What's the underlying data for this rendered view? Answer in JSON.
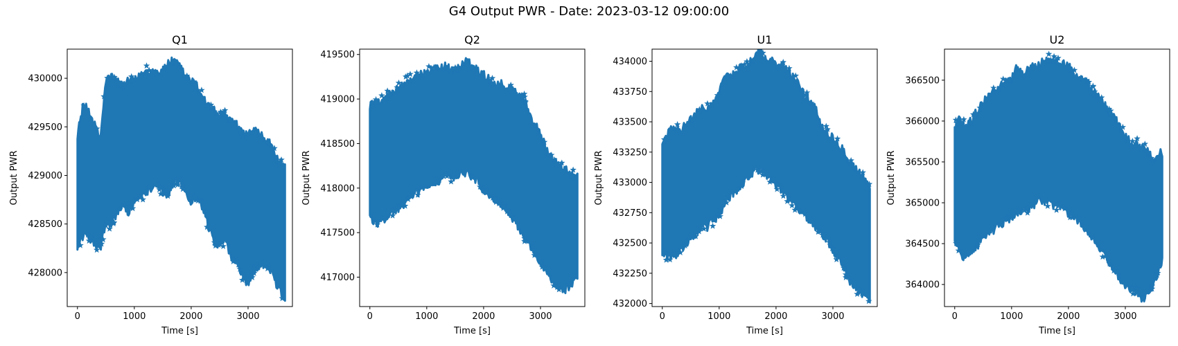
{
  "figure": {
    "title": "G4 Output PWR - Date: 2023-03-12 09:00:00"
  },
  "colors": {
    "marker": "#1f77b4",
    "axes": "#000000",
    "background": "#ffffff"
  },
  "chart_data": [
    {
      "type": "scatter",
      "title": "Q1",
      "xlabel": "Time [s]",
      "ylabel": "Output PWR",
      "marker": "star",
      "grid": false,
      "xlim": [
        -180,
        3780
      ],
      "ylim": [
        427650,
        430300
      ],
      "xticks": [
        0,
        1000,
        2000,
        3000
      ],
      "yticks": [
        428000,
        428500,
        429000,
        429500,
        430000
      ],
      "xticklabels": [
        "0",
        "1000",
        "2000",
        "3000"
      ],
      "yticklabels": [
        "428000",
        "428500",
        "429000",
        "429500",
        "430000"
      ],
      "upper_envelope": {
        "x": [
          0,
          100,
          200,
          300,
          400,
          500,
          600,
          700,
          800,
          900,
          1000,
          1100,
          1200,
          1300,
          1400,
          1500,
          1600,
          1700,
          1800,
          1900,
          2000,
          2100,
          2200,
          2300,
          2400,
          2500,
          2600,
          2700,
          2800,
          2900,
          3000,
          3100,
          3200,
          3300,
          3400,
          3500,
          3650
        ],
        "y": [
          429400,
          429700,
          429650,
          429500,
          429350,
          429950,
          430000,
          429950,
          429900,
          429950,
          429950,
          430000,
          430050,
          430050,
          430050,
          430050,
          430150,
          430150,
          430100,
          430000,
          429950,
          429900,
          429800,
          429700,
          429650,
          429600,
          429600,
          429550,
          429500,
          429400,
          429400,
          429450,
          429400,
          429350,
          429300,
          429150,
          429050
        ]
      },
      "lower_envelope": {
        "x": [
          0,
          100,
          200,
          300,
          400,
          500,
          600,
          700,
          800,
          900,
          1000,
          1100,
          1200,
          1300,
          1400,
          1500,
          1600,
          1700,
          1800,
          1900,
          2000,
          2100,
          2200,
          2300,
          2400,
          2500,
          2600,
          2700,
          2800,
          2900,
          3000,
          3100,
          3200,
          3300,
          3400,
          3500,
          3650
        ],
        "y": [
          428300,
          428400,
          428400,
          428300,
          428250,
          428550,
          428500,
          428650,
          428700,
          428650,
          428750,
          428800,
          428850,
          428900,
          428950,
          428850,
          428800,
          428950,
          429000,
          428850,
          428750,
          428800,
          428700,
          428500,
          428350,
          428300,
          428350,
          428200,
          428150,
          428000,
          427900,
          428050,
          428100,
          428100,
          428050,
          427900,
          427750
        ]
      }
    },
    {
      "type": "scatter",
      "title": "Q2",
      "xlabel": "Time [s]",
      "ylabel": "Output PWR",
      "marker": "star",
      "grid": false,
      "xlim": [
        -180,
        3780
      ],
      "ylim": [
        416670,
        419560
      ],
      "xticks": [
        0,
        1000,
        2000,
        3000
      ],
      "yticks": [
        417000,
        417500,
        418000,
        418500,
        419000,
        419500
      ],
      "xticklabels": [
        "0",
        "1000",
        "2000",
        "3000"
      ],
      "yticklabels": [
        "417000",
        "417500",
        "418000",
        "418500",
        "419000",
        "419500"
      ],
      "upper_envelope": {
        "x": [
          0,
          100,
          200,
          300,
          400,
          500,
          600,
          700,
          800,
          900,
          1000,
          1100,
          1200,
          1300,
          1400,
          1500,
          1600,
          1700,
          1800,
          1900,
          2000,
          2100,
          2200,
          2300,
          2400,
          2500,
          2600,
          2700,
          2800,
          2900,
          3000,
          3100,
          3200,
          3300,
          3400,
          3500,
          3650
        ],
        "y": [
          418900,
          418950,
          418980,
          419000,
          419050,
          419100,
          419150,
          419200,
          419200,
          419250,
          419300,
          419300,
          419320,
          419350,
          419320,
          419300,
          419350,
          419400,
          419350,
          419300,
          419250,
          419200,
          419150,
          419150,
          419100,
          419100,
          419050,
          419000,
          418800,
          418700,
          418600,
          418400,
          418300,
          418250,
          418200,
          418150,
          418100
        ]
      },
      "lower_envelope": {
        "x": [
          0,
          100,
          200,
          300,
          400,
          500,
          600,
          700,
          800,
          900,
          1000,
          1100,
          1200,
          1300,
          1400,
          1500,
          1600,
          1700,
          1800,
          1900,
          2000,
          2100,
          2200,
          2300,
          2400,
          2500,
          2600,
          2700,
          2800,
          2900,
          3000,
          3100,
          3200,
          3300,
          3400,
          3500,
          3650
        ],
        "y": [
          417700,
          417600,
          417650,
          417700,
          417750,
          417800,
          417850,
          417900,
          417950,
          418000,
          418050,
          418100,
          418100,
          418150,
          418150,
          418150,
          418200,
          418200,
          418150,
          418100,
          418000,
          417950,
          417900,
          417850,
          417800,
          417700,
          417600,
          417500,
          417400,
          417300,
          417200,
          417100,
          417000,
          416900,
          416880,
          416900,
          417050
        ]
      }
    },
    {
      "type": "scatter",
      "title": "U1",
      "xlabel": "Time [s]",
      "ylabel": "Output PWR",
      "marker": "star",
      "grid": false,
      "xlim": [
        -180,
        3780
      ],
      "ylim": [
        431975,
        434100
      ],
      "xticks": [
        0,
        1000,
        2000,
        3000
      ],
      "yticks": [
        432000,
        432250,
        432500,
        432750,
        433000,
        433250,
        433500,
        433750,
        434000
      ],
      "xticklabels": [
        "0",
        "1000",
        "2000",
        "3000"
      ],
      "yticklabels": [
        "432000",
        "432250",
        "432500",
        "432750",
        "433000",
        "433250",
        "433500",
        "433750",
        "434000"
      ],
      "upper_envelope": {
        "x": [
          0,
          100,
          200,
          300,
          400,
          500,
          600,
          700,
          800,
          900,
          1000,
          1100,
          1200,
          1300,
          1400,
          1500,
          1600,
          1700,
          1800,
          1900,
          2000,
          2100,
          2200,
          2300,
          2400,
          2500,
          2600,
          2700,
          2800,
          2900,
          3000,
          3100,
          3200,
          3300,
          3400,
          3500,
          3650
        ],
        "y": [
          433300,
          433400,
          433450,
          433400,
          433450,
          433500,
          433550,
          433600,
          433600,
          433650,
          433700,
          433900,
          433850,
          433900,
          433950,
          433950,
          434000,
          434070,
          434000,
          434000,
          433950,
          433950,
          433900,
          433850,
          433800,
          433700,
          433650,
          433600,
          433450,
          433400,
          433350,
          433300,
          433250,
          433150,
          433100,
          433050,
          432950
        ]
      },
      "lower_envelope": {
        "x": [
          0,
          100,
          200,
          300,
          400,
          500,
          600,
          700,
          800,
          900,
          1000,
          1100,
          1200,
          1300,
          1400,
          1500,
          1600,
          1700,
          1800,
          1900,
          2000,
          2100,
          2200,
          2300,
          2400,
          2500,
          2600,
          2700,
          2800,
          2900,
          3000,
          3100,
          3200,
          3300,
          3400,
          3500,
          3650
        ],
        "y": [
          432450,
          432400,
          432400,
          432450,
          432500,
          432550,
          432600,
          432650,
          432650,
          432700,
          432750,
          432850,
          432900,
          432950,
          433000,
          433050,
          433100,
          433120,
          433100,
          433050,
          433000,
          432950,
          432900,
          432850,
          432800,
          432750,
          432700,
          432650,
          432600,
          432550,
          432450,
          432400,
          432300,
          432200,
          432150,
          432100,
          432050
        ]
      }
    },
    {
      "type": "scatter",
      "title": "U2",
      "xlabel": "Time [s]",
      "ylabel": "Output PWR",
      "marker": "star",
      "grid": false,
      "xlim": [
        -180,
        3780
      ],
      "ylim": [
        363730,
        366880
      ],
      "xticks": [
        0,
        1000,
        2000,
        3000
      ],
      "yticks": [
        364000,
        364500,
        365000,
        365500,
        366000,
        366500
      ],
      "xticklabels": [
        "0",
        "1000",
        "2000",
        "3000"
      ],
      "yticklabels": [
        "364000",
        "364500",
        "365000",
        "365500",
        "366000",
        "366500"
      ],
      "upper_envelope": {
        "x": [
          0,
          100,
          200,
          300,
          400,
          500,
          600,
          700,
          800,
          900,
          1000,
          1100,
          1200,
          1300,
          1400,
          1500,
          1600,
          1700,
          1800,
          1900,
          2000,
          2100,
          2200,
          2300,
          2400,
          2500,
          2600,
          2700,
          2800,
          2900,
          3000,
          3100,
          3200,
          3300,
          3400,
          3500,
          3650
        ],
        "y": [
          365950,
          366000,
          365900,
          366000,
          366100,
          366200,
          366300,
          366350,
          366400,
          366450,
          366500,
          366650,
          366550,
          366600,
          366650,
          366700,
          366700,
          366750,
          366700,
          366700,
          366650,
          366550,
          366500,
          366450,
          366350,
          366300,
          366200,
          366100,
          366050,
          365900,
          365800,
          365700,
          365700,
          365650,
          365600,
          365500,
          365600
        ]
      },
      "lower_envelope": {
        "x": [
          0,
          100,
          200,
          300,
          400,
          500,
          600,
          700,
          800,
          900,
          1000,
          1100,
          1200,
          1300,
          1400,
          1500,
          1600,
          1700,
          1800,
          1900,
          2000,
          2100,
          2200,
          2300,
          2400,
          2500,
          2600,
          2700,
          2800,
          2900,
          3000,
          3100,
          3200,
          3300,
          3400,
          3500,
          3650
        ],
        "y": [
          364550,
          364400,
          364350,
          364450,
          364500,
          364600,
          364650,
          364700,
          364750,
          364800,
          364850,
          364900,
          364950,
          364950,
          365000,
          365050,
          365050,
          365000,
          365000,
          364950,
          364900,
          364850,
          364800,
          364700,
          364600,
          364500,
          364400,
          364300,
          364200,
          364100,
          364000,
          363950,
          363950,
          363850,
          363900,
          364050,
          364300
        ]
      }
    }
  ]
}
